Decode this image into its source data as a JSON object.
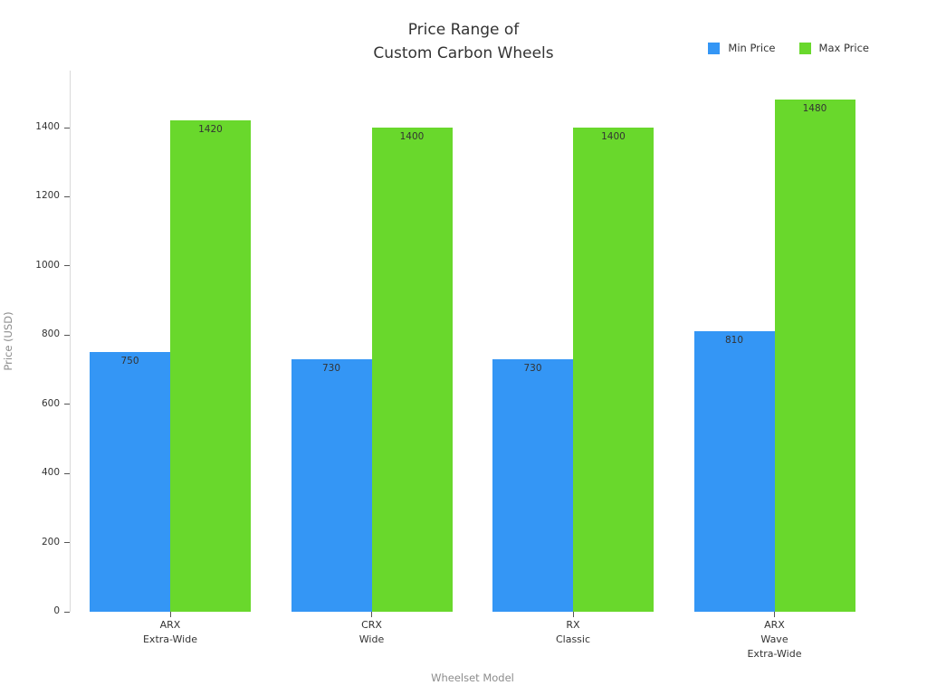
{
  "title": {
    "line1": "Price Range of",
    "line2": "Custom Carbon Wheels"
  },
  "chart_data": {
    "type": "bar",
    "title": "Price Range of Custom Carbon Wheels",
    "xlabel": "Wheelset Model",
    "ylabel": "Price (USD)",
    "categories": [
      [
        "ARX",
        "Extra-Wide"
      ],
      [
        "CRX",
        "Wide"
      ],
      [
        "RX",
        "Classic"
      ],
      [
        "ARX",
        "Wave",
        "Extra-Wide"
      ]
    ],
    "series": [
      {
        "name": "Min Price",
        "color": "#3496f5",
        "values": [
          750,
          730,
          730,
          810
        ]
      },
      {
        "name": "Max Price",
        "color": "#69d82c",
        "values": [
          1420,
          1400,
          1400,
          1480
        ]
      }
    ],
    "yticks": [
      0,
      200,
      400,
      600,
      800,
      1000,
      1200,
      1400
    ],
    "ylim": [
      0,
      1565
    ],
    "grid": false,
    "legend_position": "top-right",
    "bar_value_labels": true
  }
}
